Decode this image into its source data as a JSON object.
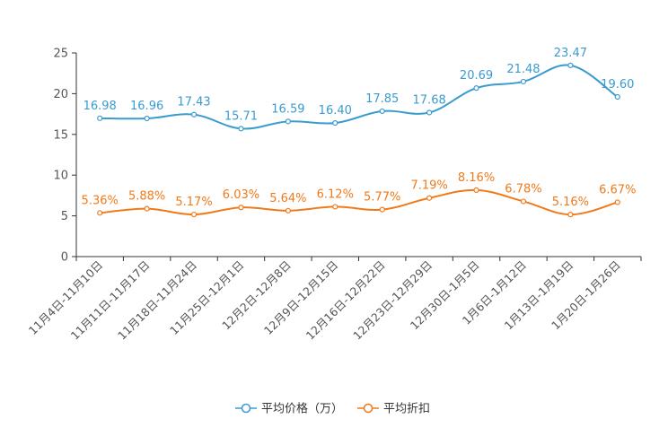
{
  "chart_data": {
    "type": "line",
    "categories": [
      "11月4日-11月10日",
      "11月11日-11月17日",
      "11月18日-11月24日",
      "11月25日-12月1日",
      "12月2日-12月8日",
      "12月9日-12月15日",
      "12月16日-12月22日",
      "12月23日-12月29日",
      "12月30日-1月5日",
      "1月6日-1月12日",
      "1月13日-1月19日",
      "1月20日-1月26日"
    ],
    "series": [
      {
        "name": "平均价格（万）",
        "color": "#3a9bcf",
        "values": [
          16.98,
          16.96,
          17.43,
          15.71,
          16.59,
          16.4,
          17.85,
          17.68,
          20.69,
          21.48,
          23.47,
          19.6
        ],
        "labels": [
          "16.98",
          "16.96",
          "17.43",
          "15.71",
          "16.59",
          "16.40",
          "17.85",
          "17.68",
          "20.69",
          "21.48",
          "23.47",
          "19.60"
        ]
      },
      {
        "name": "平均折扣",
        "color": "#f07a1a",
        "values": [
          5.36,
          5.88,
          5.17,
          6.03,
          5.64,
          6.12,
          5.77,
          7.19,
          8.16,
          6.78,
          5.16,
          6.67
        ],
        "labels": [
          "5.36%",
          "5.88%",
          "5.17%",
          "6.03%",
          "5.64%",
          "6.12%",
          "5.77%",
          "7.19%",
          "8.16%",
          "6.78%",
          "5.16%",
          "6.67%"
        ]
      }
    ],
    "yticks": [
      "0",
      "5",
      "10",
      "15",
      "20",
      "25"
    ],
    "ylim": [
      0,
      25
    ],
    "legend_position": "bottom"
  }
}
